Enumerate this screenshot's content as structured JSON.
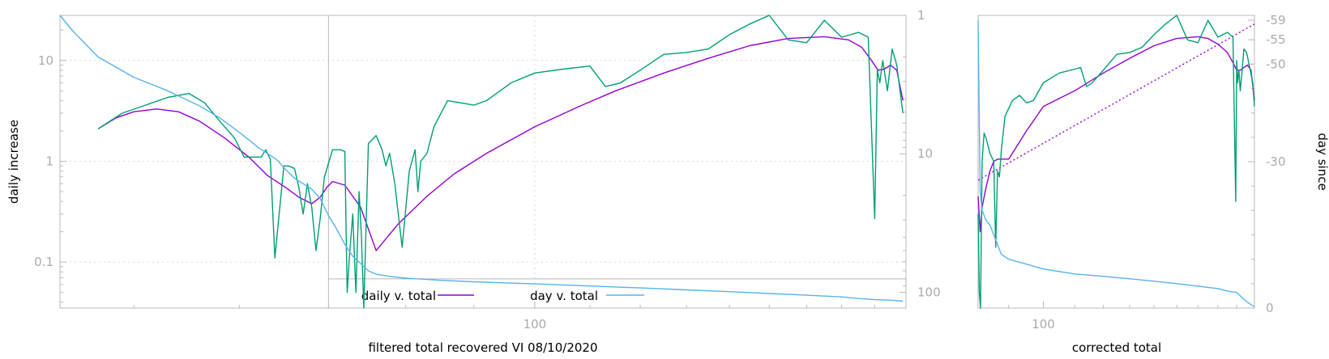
{
  "colors": {
    "daily": "#9400d3",
    "day": "#56b4e9",
    "raw": "#009e73",
    "axis": "#b8b8b8",
    "tick_text": "#aaaaaa"
  },
  "chart_data": [
    {
      "id": "main",
      "type": "line",
      "xlabel": "filtered total recovered VI 08/10/2020",
      "ylabel": "daily increase",
      "y2label": "",
      "x_scale": "log",
      "y_scale": "log",
      "y2_scale": "log",
      "y2_reversed": true,
      "xlim": [
        44,
        190
      ],
      "ylim": [
        0.035,
        28
      ],
      "y2lim": [
        1,
        130
      ],
      "x_ticks": [
        100
      ],
      "x_tick_labels": [
        "100"
      ],
      "y_ticks": [
        0.1,
        1,
        10
      ],
      "y_tick_labels": [
        "0.1",
        "1",
        "10"
      ],
      "y2_ticks": [
        1,
        10,
        100
      ],
      "y2_tick_labels": [
        "1",
        "10",
        "100"
      ],
      "grid": true,
      "legend_position": "bottom-center",
      "legend": [
        {
          "label": "daily v. total",
          "color_key": "daily"
        },
        {
          "label": "day v. total",
          "color_key": "day"
        }
      ],
      "vertical_marker_x": 70,
      "horizontal_marker_y2": 80,
      "series": [
        {
          "name": "daily v. total",
          "color_key": "daily",
          "axis": "left",
          "x": [
            47,
            48.5,
            50,
            52,
            54,
            56,
            58.5,
            61,
            63,
            65,
            66.5,
            68,
            69,
            69.8,
            70.5,
            72,
            74,
            76,
            79,
            83,
            87,
            92,
            100,
            108,
            115,
            125,
            135,
            145,
            155,
            165,
            172,
            176,
            179,
            181,
            183,
            185,
            187,
            189
          ],
          "y": [
            2.1,
            2.7,
            3.1,
            3.3,
            3.1,
            2.5,
            1.7,
            1.1,
            0.72,
            0.55,
            0.44,
            0.38,
            0.44,
            0.55,
            0.63,
            0.58,
            0.35,
            0.13,
            0.24,
            0.45,
            0.75,
            1.2,
            2.2,
            3.5,
            5.0,
            7.5,
            10.5,
            14.0,
            16.5,
            17.2,
            16.0,
            13.5,
            10.0,
            8.0,
            8.2,
            9.0,
            8.0,
            4.0
          ]
        },
        {
          "name": "",
          "color_key": "raw",
          "axis": "left",
          "x": [
            47,
            49,
            51,
            53,
            55,
            56.5,
            58,
            59.5,
            60.5,
            61.5,
            62.3,
            62.8,
            63.3,
            63.8,
            64.8,
            65.3,
            66,
            66.5,
            67,
            67.5,
            68,
            68.5,
            69,
            69.5,
            70.5,
            71.5,
            72,
            72.3,
            72.6,
            73,
            73.4,
            73.8,
            74.1,
            74.4,
            75,
            76,
            76.8,
            77.3,
            77.8,
            78.5,
            79.5,
            80.5,
            81.3,
            81.7,
            82.1,
            83,
            84,
            86,
            88,
            90,
            92,
            96,
            100,
            105,
            110,
            113,
            116,
            120,
            125,
            130,
            135,
            140,
            145,
            150,
            155,
            160,
            165,
            170,
            175,
            178,
            180,
            180.8,
            181.6,
            182.5,
            184,
            185.5,
            187,
            189
          ],
          "y": [
            2.1,
            3.0,
            3.6,
            4.3,
            4.7,
            3.8,
            2.5,
            1.7,
            1.1,
            1.1,
            1.1,
            1.3,
            1.05,
            0.11,
            0.9,
            0.9,
            0.85,
            0.55,
            0.3,
            0.6,
            0.35,
            0.13,
            0.27,
            0.7,
            1.3,
            1.3,
            1.25,
            0.05,
            0.12,
            0.3,
            0.05,
            0.5,
            0.18,
            0.02,
            1.5,
            1.8,
            1.3,
            0.9,
            1.2,
            0.6,
            0.14,
            0.8,
            1.3,
            0.5,
            1.0,
            1.2,
            2.2,
            4.0,
            3.8,
            3.6,
            4.0,
            6.0,
            7.5,
            8.2,
            8.8,
            5.5,
            6.0,
            8.0,
            11.5,
            12.0,
            13.0,
            18.0,
            23.0,
            28.0,
            16.0,
            15.0,
            25.0,
            17.0,
            19.0,
            17.0,
            0.27,
            8.0,
            6.0,
            10.0,
            5.0,
            13.0,
            9.0,
            3.0
          ]
        },
        {
          "name": "day v. total",
          "color_key": "day",
          "axis": "right",
          "x": [
            44,
            45,
            47,
            50,
            53,
            56,
            58,
            60,
            62,
            64,
            65,
            66,
            68,
            69,
            70,
            71,
            72,
            73,
            74,
            75,
            76,
            78,
            80,
            85,
            90,
            100,
            110,
            120,
            130,
            140,
            150,
            160,
            170,
            175,
            180,
            185,
            189
          ],
          "y2": [
            1,
            1.3,
            2,
            2.8,
            3.5,
            4.5,
            5.5,
            7,
            9,
            11,
            13,
            15,
            18,
            21,
            28,
            35,
            45,
            55,
            62,
            70,
            74,
            77,
            79,
            82,
            84,
            87,
            90,
            93,
            96,
            99,
            102,
            105,
            108,
            111,
            113,
            114,
            116
          ]
        }
      ]
    },
    {
      "id": "side",
      "type": "line",
      "xlabel": "corrected total",
      "ylabel": "",
      "y2label": "day since",
      "x_scale": "log",
      "y_scale": "log",
      "xlim": [
        82,
        190
      ],
      "ylim": [
        0.035,
        28
      ],
      "y2lim": [
        -60,
        0
      ],
      "x_ticks": [
        100
      ],
      "x_tick_labels": [
        "100"
      ],
      "y2_ticks": [
        -59,
        -55,
        -50,
        -30,
        0
      ],
      "y2_tick_labels": [
        "-59",
        "-55",
        "-50",
        "-30",
        "0"
      ],
      "grid": false,
      "series": [
        {
          "name": "",
          "color_key": "daily",
          "axis": "left",
          "x": [
            82,
            82.5,
            83,
            84,
            85,
            86,
            87,
            90,
            95,
            100,
            110,
            120,
            130,
            140,
            150,
            160,
            165,
            170,
            175,
            178,
            180,
            182,
            184,
            186,
            188,
            190
          ],
          "y": [
            0.45,
            0.2,
            0.35,
            0.55,
            0.8,
            1.0,
            1.05,
            1.05,
            2.0,
            3.5,
            5.0,
            7.5,
            10.5,
            14.0,
            16.5,
            17.2,
            16.5,
            14.5,
            12.0,
            9.5,
            8.0,
            8.0,
            8.5,
            9.0,
            8.0,
            4.0
          ]
        },
        {
          "name": "",
          "color_key": "daily",
          "axis": "left",
          "style": "dotted",
          "x": [
            82,
            190
          ],
          "y": [
            0.65,
            23
          ]
        },
        {
          "name": "",
          "color_key": "raw",
          "axis": "left",
          "x": [
            82,
            82.3,
            82.6,
            83,
            83.5,
            84,
            85,
            86,
            86.5,
            87,
            87.5,
            88,
            89,
            91,
            93,
            95,
            97,
            100,
            105,
            110,
            112,
            114,
            116,
            120,
            125,
            130,
            135,
            140,
            145,
            150,
            155,
            160,
            165,
            170,
            175,
            178,
            179.5,
            180,
            180.5,
            181.2,
            182,
            183,
            184,
            185.5,
            187,
            189,
            190
          ],
          "y": [
            0.3,
            0.05,
            0.03,
            1.0,
            1.9,
            1.7,
            1.2,
            1.0,
            0.14,
            0.8,
            0.7,
            1.3,
            2.8,
            4.0,
            4.5,
            3.8,
            4.0,
            6.0,
            7.5,
            8.2,
            8.5,
            5.5,
            6.0,
            8.0,
            11.5,
            12.0,
            13.5,
            18.0,
            23.0,
            28.0,
            16.0,
            15.0,
            25.0,
            17.0,
            19.0,
            17.0,
            0.4,
            10.0,
            6.0,
            8.0,
            5.0,
            8.0,
            13.0,
            12.0,
            9.0,
            6.0,
            3.5
          ]
        },
        {
          "name": "",
          "color_key": "day",
          "axis": "right",
          "x": [
            82,
            82.5,
            83,
            84,
            85,
            86,
            87,
            88,
            90,
            95,
            100,
            110,
            120,
            130,
            140,
            150,
            160,
            170,
            175,
            178,
            180,
            182,
            184,
            186,
            188,
            190
          ],
          "y2": [
            -59,
            -24,
            -20,
            -18,
            -17,
            -15,
            -13,
            -11,
            -10,
            -9,
            -8,
            -7,
            -6.5,
            -6,
            -5.5,
            -5,
            -4.5,
            -4,
            -3.5,
            -3.3,
            -3.2,
            -2.5,
            -1.8,
            -1.2,
            -0.7,
            -0.3
          ]
        }
      ]
    }
  ]
}
